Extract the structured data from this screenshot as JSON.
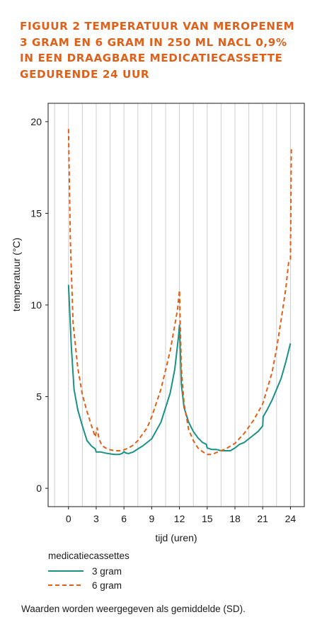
{
  "title_lines": [
    "FIGUUR 2 TEMPERATUUR VAN MEROPENEM",
    "3 GRAM EN 6 GRAM IN 250 ML NACL 0,9%",
    "IN EEN DRAAGBARE MEDICATIECASSETTE",
    "GEDURENDE 24 UUR"
  ],
  "legend_title": "medicatiecassettes",
  "footnote": "Waarden worden weergegeven als gemiddelde (SD).",
  "colors": {
    "title": "#e0601a",
    "series_3g": "#1a9185",
    "series_6g": "#e0601a",
    "grid": "#cfcfcf"
  },
  "chart_data": {
    "type": "line",
    "xlabel": "tijd (uren)",
    "ylabel": "temperatuur (°C)",
    "xlim": [
      -2.2,
      25.5
    ],
    "ylim": [
      -1,
      21
    ],
    "x_ticks": [
      0,
      3,
      6,
      9,
      12,
      15,
      18,
      21,
      24
    ],
    "y_ticks": [
      0,
      5,
      10,
      15,
      20
    ],
    "grid": true,
    "legend_position": "bottom-left",
    "series": [
      {
        "name": "3 gram",
        "style": "solid",
        "x": [
          0,
          0.3,
          0.6,
          1,
          1.5,
          2,
          2.5,
          2.9,
          3,
          3.5,
          4,
          4.5,
          5,
          5.5,
          5.8,
          6,
          6.2,
          6.5,
          7,
          7.5,
          8,
          9,
          10,
          11,
          11.5,
          11.9,
          12,
          12.2,
          12.5,
          13,
          13.5,
          14,
          14.5,
          14.9,
          15,
          15.5,
          16,
          16.5,
          17,
          17.5,
          18,
          18.5,
          19,
          19.5,
          20,
          20.5,
          21,
          21.05,
          21.5,
          22,
          22.5,
          23,
          23.5,
          24
        ],
        "y": [
          11.1,
          7.8,
          5.4,
          4.3,
          3.4,
          2.6,
          2.3,
          2.15,
          1.98,
          1.98,
          1.92,
          1.88,
          1.85,
          1.85,
          1.9,
          2.0,
          1.92,
          1.9,
          1.98,
          2.15,
          2.3,
          2.7,
          3.6,
          5.2,
          6.5,
          8.3,
          8.9,
          5.7,
          4.4,
          3.6,
          3.1,
          2.75,
          2.5,
          2.4,
          2.2,
          2.12,
          2.12,
          2.05,
          2.05,
          2.05,
          2.2,
          2.4,
          2.5,
          2.7,
          2.9,
          3.1,
          3.4,
          3.9,
          4.3,
          4.8,
          5.4,
          6.0,
          6.9,
          7.9
        ]
      },
      {
        "name": "6 gram",
        "style": "dashed",
        "x": [
          0,
          0.2,
          0.5,
          1,
          1.5,
          2,
          2.5,
          2.9,
          3.1,
          3.3,
          3.6,
          4,
          4.5,
          5,
          5.5,
          6,
          6.5,
          7,
          7.5,
          8,
          8.5,
          9,
          10,
          11,
          11.5,
          11.8,
          12,
          12.2,
          12.5,
          13,
          13.5,
          14,
          14.5,
          15,
          15.5,
          16,
          17,
          18,
          19,
          20,
          21,
          22,
          22.5,
          23,
          23.5,
          23.8,
          24,
          24.1
        ],
        "y": [
          19.6,
          13.5,
          9.0,
          6.6,
          5.1,
          4.2,
          3.4,
          2.8,
          3.3,
          2.7,
          2.35,
          2.2,
          2.1,
          2.05,
          2.05,
          2.1,
          2.2,
          2.35,
          2.6,
          2.95,
          3.3,
          3.9,
          5.4,
          7.5,
          8.9,
          9.8,
          10.8,
          6.6,
          4.6,
          3.2,
          2.6,
          2.2,
          2.0,
          1.85,
          1.85,
          1.95,
          2.15,
          2.45,
          3.0,
          3.7,
          4.6,
          6.3,
          7.6,
          9.2,
          10.9,
          12.3,
          12.5,
          18.6
        ]
      }
    ]
  }
}
